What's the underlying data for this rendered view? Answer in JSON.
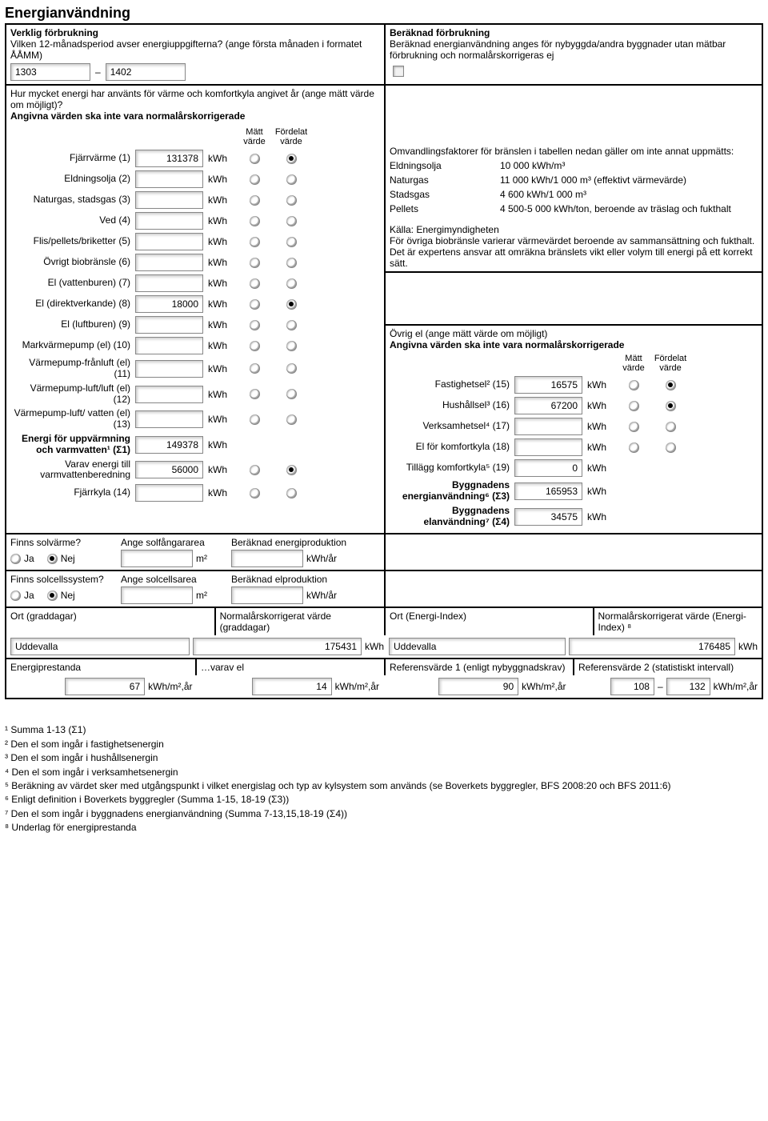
{
  "title": "Energianvändning",
  "verklig": {
    "heading": "Verklig förbrukning",
    "question": "Vilken 12-månadsperiod avser energiuppgifterna? (ange första månaden i formatet ÅÅMM)",
    "from": "1303",
    "dash": "–",
    "to": "1402"
  },
  "beraknad": {
    "heading": "Beräknad förbrukning",
    "text": "Beräknad energianvändning anges för nybyggda/andra byggnader utan mätbar förbrukning och normalårskorrigeras ej"
  },
  "heat_q": "Hur mycket energi har använts för värme och komfortkyla angivet år (ange mätt värde om möjligt)?",
  "heat_note": "Angivna värden ska inte vara normalårskorrigerade",
  "col_matt": "Mätt värde",
  "col_ford": "Fördelat värde",
  "rows": [
    {
      "label": "Fjärrvärme (1)",
      "value": "131378",
      "sel": "ford"
    },
    {
      "label": "Eldningsolja (2)",
      "value": "",
      "sel": ""
    },
    {
      "label": "Naturgas, stadsgas (3)",
      "value": "",
      "sel": ""
    },
    {
      "label": "Ved (4)",
      "value": "",
      "sel": ""
    },
    {
      "label": "Flis/pellets/briketter (5)",
      "value": "",
      "sel": ""
    },
    {
      "label": "Övrigt biobränsle (6)",
      "value": "",
      "sel": ""
    },
    {
      "label": "El (vattenburen) (7)",
      "value": "",
      "sel": ""
    },
    {
      "label": "El (direktverkande) (8)",
      "value": "18000",
      "sel": "ford"
    },
    {
      "label": "El (luftburen) (9)",
      "value": "",
      "sel": ""
    },
    {
      "label": "Markvärmepump (el) (10)",
      "value": "",
      "sel": ""
    },
    {
      "label": "Värmepump-frånluft (el) (11)",
      "value": "",
      "sel": ""
    },
    {
      "label": "Värmepump-luft/luft (el) (12)",
      "value": "",
      "sel": ""
    },
    {
      "label": "Värmepump-luft/ vatten (el) (13)",
      "value": "",
      "sel": ""
    }
  ],
  "sum1_label": "Energi för uppvärmning och varmvatten¹ (Σ1)",
  "sum1_value": "149378",
  "varav_label": "Varav energi till varmvattenberedning",
  "varav_value": "56000",
  "fjarrkyla_label": "Fjärrkyla (14)",
  "fjarrkyla_value": "",
  "kwh": "kWh",
  "factors": {
    "intro": "Omvandlingsfaktorer för bränslen i tabellen nedan gäller om inte annat uppmätts:",
    "items": [
      {
        "name": "Eldningsolja",
        "val": "10 000 kWh/m³"
      },
      {
        "name": "Naturgas",
        "val": "11 000 kWh/1 000 m³ (effektivt värmevärde)"
      },
      {
        "name": "Stadsgas",
        "val": "4 600 kWh/1 000 m³"
      },
      {
        "name": "Pellets",
        "val": "4 500-5 000 kWh/ton, beroende av träslag och fukthalt"
      }
    ],
    "source": "Källa: Energimyndigheten",
    "note": "För övriga biobränsle varierar värmevärdet beroende av sammansättning och fukthalt. Det är expertens ansvar att omräkna bränslets vikt eller volym till energi på ett korrekt sätt."
  },
  "ovrig_el": {
    "heading": "Övrig el (ange mätt värde om möjligt)",
    "note": "Angivna värden ska inte vara normalårskorrigerade",
    "rows": [
      {
        "label": "Fastighetsel² (15)",
        "value": "16575",
        "sel": "ford",
        "radios": true
      },
      {
        "label": "Hushållsel³ (16)",
        "value": "67200",
        "sel": "ford",
        "radios": true
      },
      {
        "label": "Verksamhetsel⁴ (17)",
        "value": "",
        "sel": "",
        "radios": true
      },
      {
        "label": "El för komfortkyla (18)",
        "value": "",
        "sel": "",
        "radios": true
      },
      {
        "label": "Tillägg komfortkyla⁵ (19)",
        "value": "0",
        "sel": "",
        "radios": false
      }
    ],
    "sum3_label": "Byggnadens energianvändning⁶ (Σ3)",
    "sum3_value": "165953",
    "sum4_label": "Byggnadens elanvändning⁷ (Σ4)",
    "sum4_value": "34575"
  },
  "solar": {
    "q1": "Finns solvärme?",
    "area1_label": "Ange solfångararea",
    "prod1_label": "Beräknad energiproduktion",
    "q2": "Finns solcellssystem?",
    "area2_label": "Ange solcellsarea",
    "prod2_label": "Beräknad elproduktion",
    "ja": "Ja",
    "nej": "Nej",
    "m2": "m²",
    "kwhar": "kWh/år"
  },
  "ort": {
    "graddagar_label": "Ort (graddagar)",
    "graddagar_norm": "Normalårskorrigerat värde (graddagar)",
    "graddagar_ort": "Uddevalla",
    "graddagar_val": "175431",
    "eindex_label": "Ort (Energi-Index)",
    "eindex_norm": "Normalårskorrigerat värde (Energi-Index) ⁸",
    "eindex_ort": "Uddevalla",
    "eindex_val": "176485"
  },
  "prestanda": {
    "ep_label": "Energiprestanda",
    "ep_val": "67",
    "el_label": "…varav el",
    "el_val": "14",
    "ref1_label": "Referensvärde 1 (enligt nybyggnadskrav)",
    "ref1_val": "90",
    "ref2_label": "Referensvärde 2 (statistiskt intervall)",
    "ref2_from": "108",
    "ref2_to": "132",
    "unit": "kWh/m²,år",
    "dash": "–"
  },
  "footnotes": [
    "¹ Summa 1-13 (Σ1)",
    "² Den el som ingår i fastighetsenergin",
    "³ Den el som ingår i hushållsenergin",
    "⁴ Den el som ingår i verksamhetsenergin",
    "⁵ Beräkning av värdet sker med utgångspunkt i vilket energislag och typ av kylsystem som används (se Boverkets byggregler, BFS 2008:20 och BFS 2011:6)",
    "⁶ Enligt definition i Boverkets byggregler (Summa 1-15, 18-19 (Σ3))",
    "⁷ Den el som ingår i byggnadens energianvändning (Summa 7-13,15,18-19 (Σ4))",
    "⁸ Underlag för energiprestanda"
  ]
}
